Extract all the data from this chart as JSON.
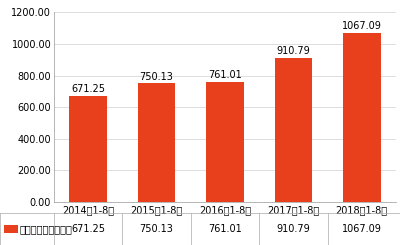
{
  "categories": [
    "2014年1-8月",
    "2015年1-8月",
    "2016年1-8月",
    "2017年1-8月",
    "2018年1-8月"
  ],
  "values": [
    671.25,
    750.13,
    761.01,
    910.79,
    1067.09
  ],
  "bar_color": "#E8401C",
  "ylim": [
    0,
    1200
  ],
  "yticks": [
    0,
    200,
    400,
    600,
    800,
    1000,
    1200
  ],
  "ytick_labels": [
    "0.00",
    "200.00",
    "400.00",
    "600.00",
    "800.00",
    "1000.00",
    "1200.00"
  ],
  "legend_label": "财政总收入（亿元）",
  "legend_values": [
    "671.25",
    "750.13",
    "761.01",
    "910.79",
    "1067.09"
  ],
  "value_labels": [
    "671.25",
    "750.13",
    "761.01",
    "910.79",
    "1067.09"
  ],
  "background_color": "#ffffff",
  "grid_color": "#d0d0d0",
  "border_color": "#999999",
  "table_border_color": "#aaaaaa",
  "bar_width": 0.55,
  "label_fontsize": 7,
  "tick_fontsize": 7,
  "legend_fontsize": 7
}
